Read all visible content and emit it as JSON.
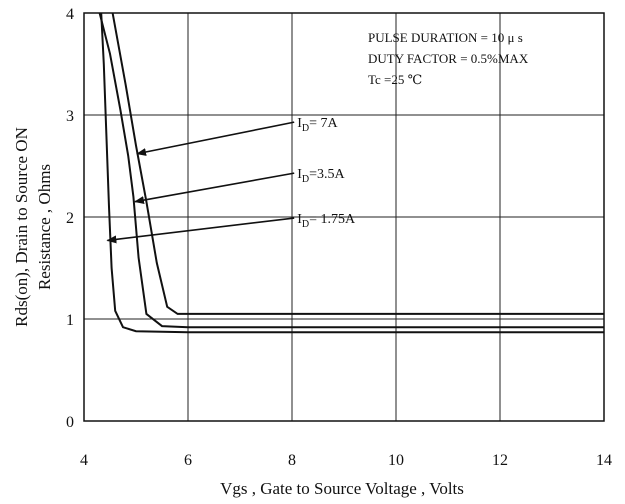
{
  "chart_data": {
    "type": "line",
    "title": "",
    "xlabel": "Vgs , Gate to Source Voltage ,  Volts",
    "ylabel_line1": "Rds(on), Drain to Source ON",
    "ylabel_line2": "Resistance , Ohms",
    "xlim": [
      4,
      14
    ],
    "ylim": [
      0,
      4
    ],
    "x_ticks": [
      4,
      6,
      8,
      10,
      12,
      14
    ],
    "y_ticks": [
      0,
      1,
      2,
      3,
      4
    ],
    "grid": true,
    "conditions": [
      "PULSE    DURATION = 10 μ s",
      "DUTY    FACTOR = 0.5%MAX",
      "Tc =25  ℃"
    ],
    "series": [
      {
        "name": "I_D= 7A",
        "label_main": "I",
        "label_sub": "D",
        "label_rest": "= 7A",
        "x": [
          4.55,
          4.8,
          5.0,
          5.2,
          5.4,
          5.6,
          5.8,
          6.5,
          8,
          10,
          12,
          14
        ],
        "y": [
          4.0,
          3.3,
          2.7,
          2.15,
          1.55,
          1.12,
          1.05,
          1.05,
          1.05,
          1.05,
          1.05,
          1.05
        ]
      },
      {
        "name": "I_D=3.5A",
        "label_main": "I",
        "label_sub": "D",
        "label_rest": "=3.5A",
        "x": [
          4.3,
          4.5,
          4.7,
          4.85,
          4.95,
          5.05,
          5.2,
          5.5,
          6,
          8,
          10,
          12,
          14
        ],
        "y": [
          4.0,
          3.6,
          3.05,
          2.6,
          2.2,
          1.6,
          1.05,
          0.93,
          0.92,
          0.92,
          0.92,
          0.92,
          0.92
        ]
      },
      {
        "name": "I_D= 1.75A",
        "label_main": "I",
        "label_sub": "D",
        "label_rest": "= 1.75A",
        "x": [
          4.33,
          4.38,
          4.43,
          4.48,
          4.53,
          4.6,
          4.75,
          5.0,
          6,
          8,
          10,
          12,
          14
        ],
        "y": [
          4.0,
          3.5,
          2.8,
          2.1,
          1.5,
          1.08,
          0.92,
          0.88,
          0.87,
          0.87,
          0.87,
          0.87,
          0.87
        ]
      }
    ],
    "annotations": [
      {
        "series": 0,
        "label_at": [
          8.1,
          2.93
        ],
        "arrow_to": [
          5.02,
          2.62
        ]
      },
      {
        "series": 1,
        "label_at": [
          8.1,
          2.43
        ],
        "arrow_to": [
          4.98,
          2.15
        ]
      },
      {
        "series": 2,
        "label_at": [
          8.1,
          1.99
        ],
        "arrow_to": [
          4.45,
          1.77
        ]
      }
    ]
  }
}
